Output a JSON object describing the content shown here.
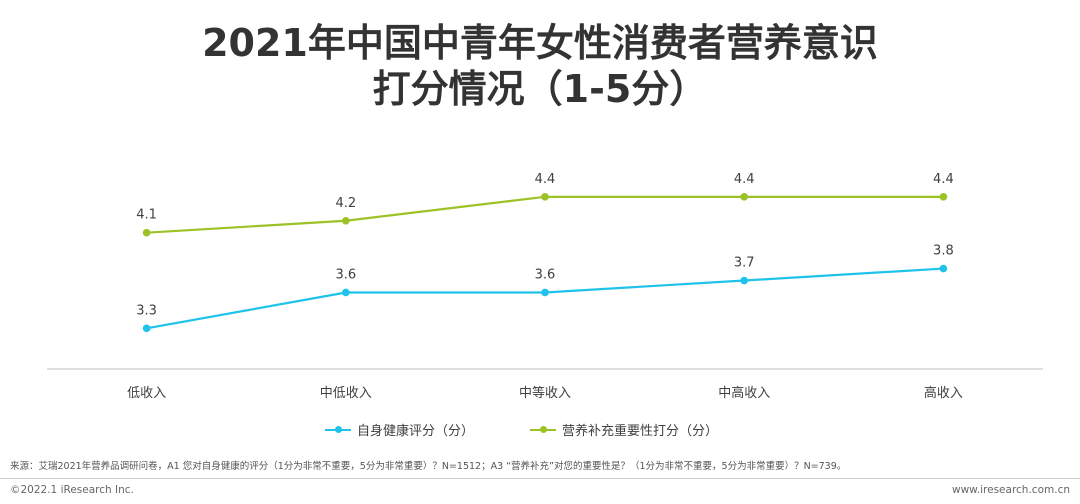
{
  "chart_data": {
    "type": "line",
    "title_line1": "2021年中国中青年女性消费者营养意识",
    "title_line2": "打分情况（1-5分）",
    "categories": [
      "低收入",
      "中低收入",
      "中等收入",
      "中高收入",
      "高收入"
    ],
    "series": [
      {
        "name": "自身健康评分（分）",
        "color": "#1fc3ea",
        "values": [
          3.3,
          3.6,
          3.6,
          3.7,
          3.8
        ],
        "labels": [
          "3.3",
          "3.6",
          "3.6",
          "3.7",
          "3.8"
        ]
      },
      {
        "name": "营养补充重要性打分（分）",
        "color": "#9dc226",
        "values": [
          4.1,
          4.2,
          4.4,
          4.4,
          4.4
        ],
        "labels": [
          "4.1",
          "4.2",
          "4.4",
          "4.4",
          "4.4"
        ]
      }
    ],
    "ylim": [
      2.96,
      4.75
    ],
    "grid": false,
    "legend_position": "bottom"
  },
  "source": "来源：艾瑞2021年营养品调研问卷，A1 您对自身健康的评分（1分为非常不重要，5分为非常重要）？N=1512；A3 “营养补充”对您的重要性是？（1分为非常不重要，5分为非常重要）？N=739。",
  "copyright": "©2022.1 iResearch Inc.",
  "website": "www.iresearch.com.cn"
}
